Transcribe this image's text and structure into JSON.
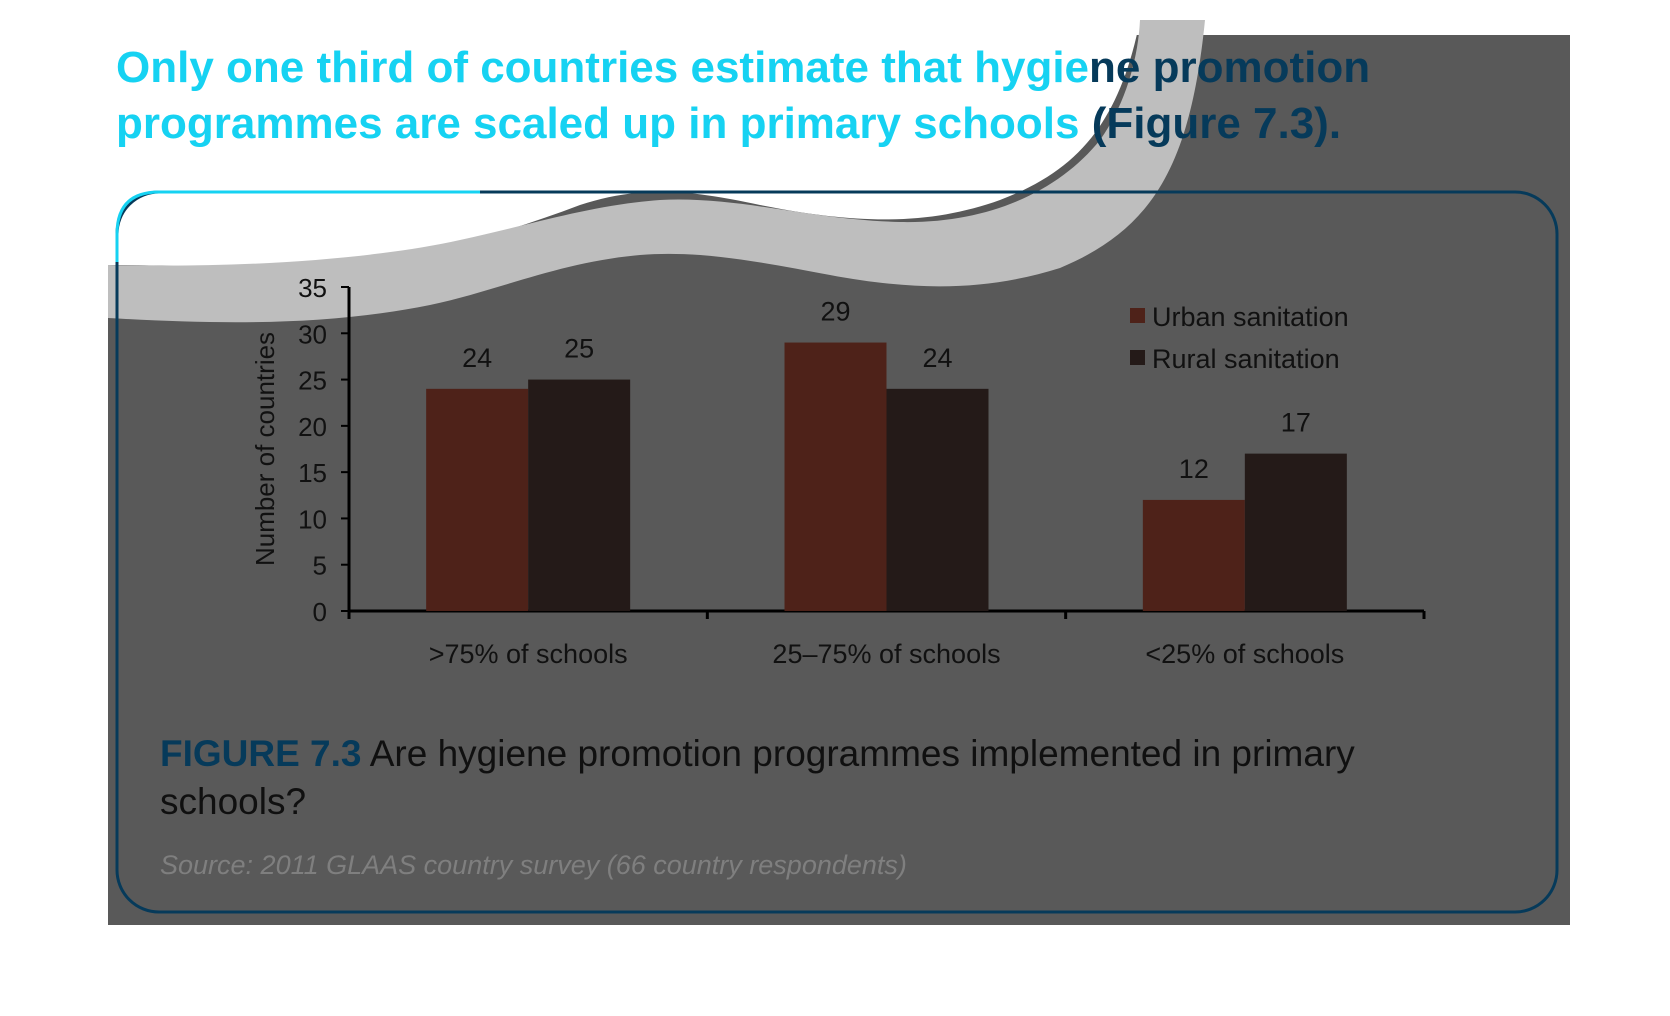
{
  "headline": {
    "part1": "Only one third of countries estimate that hygie",
    "part2": "ne promotion",
    "line2a": "programmes are scaled up in primary schools",
    "line2b": " (Figure 7.3)."
  },
  "caption": {
    "figure_label": "FIGURE 7.3",
    "text": " Are hygiene promotion programmes implemented in primary schools?"
  },
  "source": "Source: 2011 GLAAS country survey (66 country respondents)",
  "colors": {
    "panel": "#595959",
    "swoosh": "#bebebe",
    "cyan": "#16d2f2",
    "navy": "#063a5a",
    "urban": "#4e2219",
    "rural": "#241a18"
  },
  "chart_data": {
    "type": "bar",
    "categories": [
      ">75% of schools",
      "25–75% of schools",
      "<25% of schools"
    ],
    "series": [
      {
        "name": "Urban sanitation",
        "values": [
          24,
          29,
          12
        ]
      },
      {
        "name": "Rural sanitation",
        "values": [
          25,
          24,
          17
        ]
      }
    ],
    "ylabel": "Number of countries",
    "ylim": [
      0,
      35
    ],
    "yticks": [
      0,
      5,
      10,
      15,
      20,
      25,
      30,
      35
    ],
    "legend_position": "top-right",
    "grid": false,
    "data_labels": true
  }
}
